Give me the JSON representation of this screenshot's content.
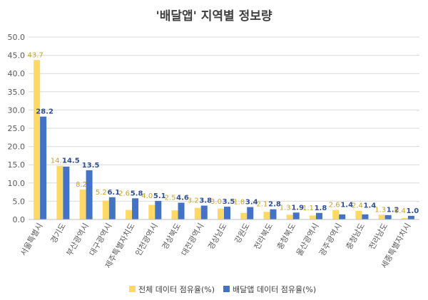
{
  "chart_data": {
    "type": "bar",
    "title": "'배달앱' 지역별 정보량",
    "ylim": [
      0,
      50
    ],
    "yticks": [
      "0.0",
      "5.0",
      "10.0",
      "15.0",
      "20.0",
      "25.0",
      "30.0",
      "35.0",
      "40.0",
      "45.0",
      "50.0"
    ],
    "grid": true,
    "legend_position": "bottom",
    "categories": [
      "서울특별시",
      "경기도",
      "부산광역시",
      "대구광역시",
      "제주특별자치도",
      "인천광역시",
      "경상북도",
      "대전광역시",
      "경상남도",
      "강원도",
      "전라북도",
      "충청북도",
      "울산광역시",
      "광주광역시",
      "충청남도",
      "전라남도",
      "세종특별자치시"
    ],
    "series": [
      {
        "name": "전체 데이터 점유율(%)",
        "color": "#ffd966",
        "values": [
          43.7,
          14.7,
          8.2,
          5.2,
          2.6,
          4.0,
          2.5,
          3.2,
          3.0,
          1.8,
          2.1,
          1.3,
          1.1,
          2.6,
          2.4,
          1.3,
          0.4
        ],
        "labels": [
          "43.7",
          "14.7",
          "8.2",
          "5.2",
          "2.6",
          "4.0",
          "2.5",
          "3.2",
          "3.0",
          "1.8",
          "2.1",
          "1.3",
          "1.1",
          "2.6",
          "2.4",
          "1.3",
          "0.4"
        ]
      },
      {
        "name": "배달앱 데이터 점유율(%)",
        "color": "#4472c4",
        "values": [
          28.2,
          14.5,
          13.5,
          6.1,
          5.8,
          5.1,
          4.6,
          3.8,
          3.5,
          3.4,
          2.8,
          1.9,
          1.8,
          1.4,
          1.4,
          1.2,
          1.0
        ],
        "labels": [
          "28.2",
          "14.5",
          "13.5",
          "6.1",
          "5.8",
          "5.1",
          "4.6",
          "3.8",
          "3.5",
          "3.4",
          "2.8",
          "1.9",
          "1.8",
          "1.4",
          "1.4",
          "1.2",
          "1.0"
        ]
      }
    ]
  }
}
